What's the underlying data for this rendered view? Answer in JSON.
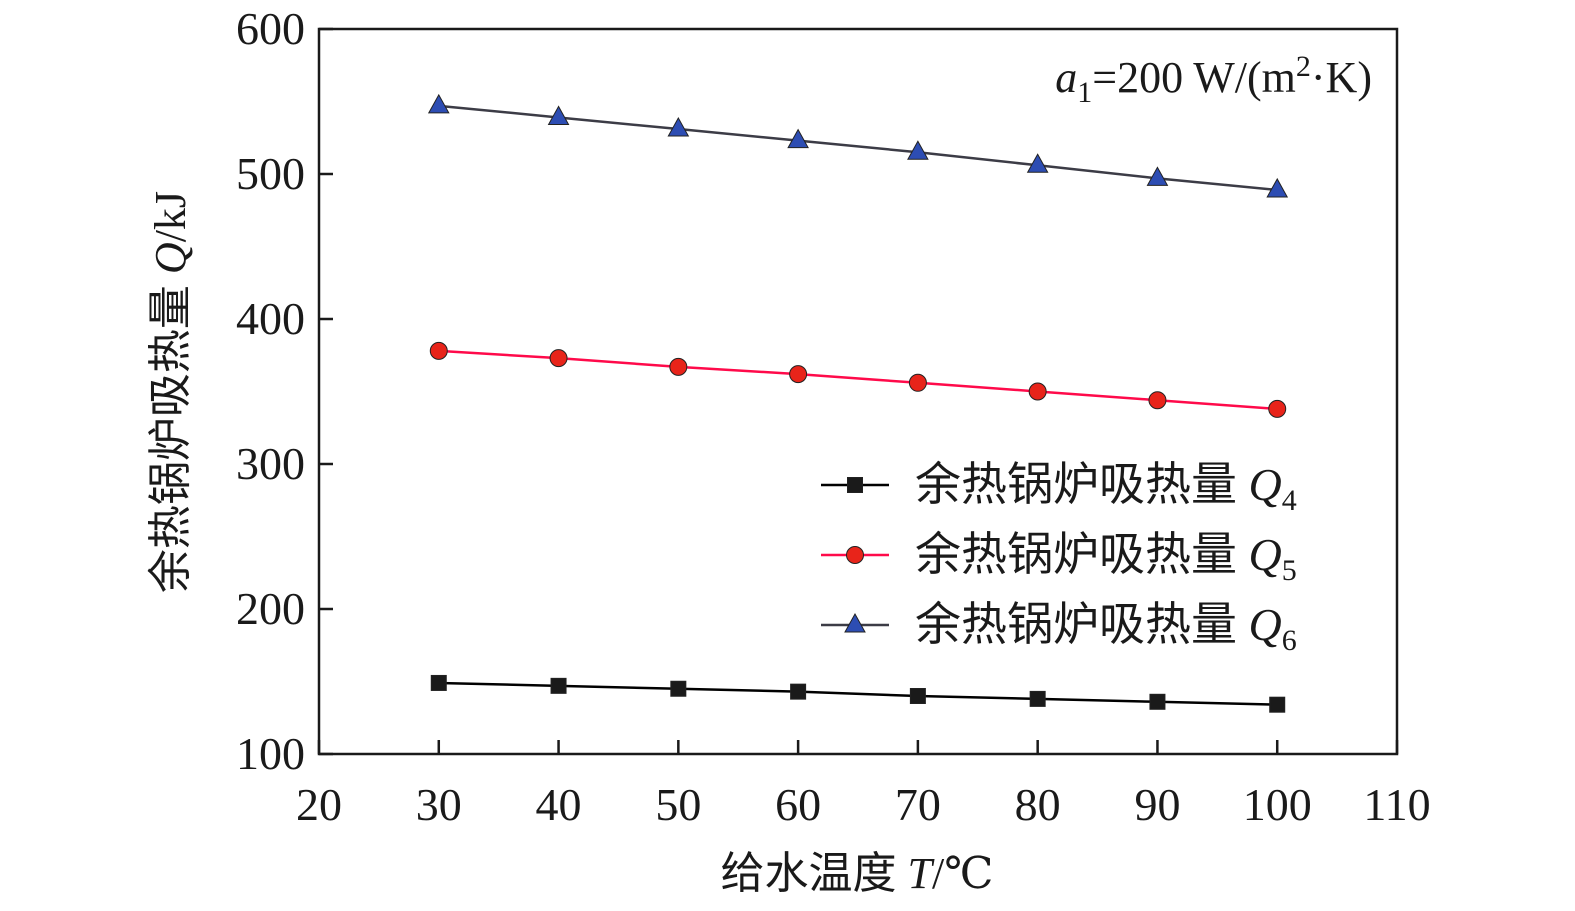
{
  "chart_data": {
    "type": "line",
    "xlabel": {
      "text": "给水温度 ",
      "var": "T",
      "unit": "/℃"
    },
    "ylabel": {
      "text": "余热锅炉吸热量 ",
      "var": "Q",
      "unit": "/kJ"
    },
    "xlim": [
      20,
      110
    ],
    "ylim": [
      100,
      600
    ],
    "xticks": [
      20,
      30,
      40,
      50,
      60,
      70,
      80,
      90,
      100,
      110
    ],
    "yticks": [
      100,
      200,
      300,
      400,
      500,
      600
    ],
    "grid": false,
    "legend_position": "right-middle",
    "annotation": {
      "var": "a",
      "sub": "1",
      "eq": "=200 W/(m",
      "sup": "2",
      "tail": "·K)"
    },
    "x": [
      30,
      40,
      50,
      60,
      70,
      80,
      90,
      100
    ],
    "series": [
      {
        "name": "余热锅炉吸热量 ",
        "var": "Q",
        "sub": "4",
        "marker": "square",
        "color": "#000000",
        "marker_color": "#1a1a1a",
        "values": [
          149,
          147,
          145,
          143,
          140,
          138,
          136,
          134
        ]
      },
      {
        "name": "余热锅炉吸热量 ",
        "var": "Q",
        "sub": "5",
        "marker": "circle",
        "color": "#ff0a4a",
        "marker_color": "#e8241a",
        "values": [
          378,
          373,
          367,
          362,
          356,
          350,
          344,
          338
        ]
      },
      {
        "name": "余热锅炉吸热量 ",
        "var": "Q",
        "sub": "6",
        "marker": "triangle",
        "color": "#3c3c46",
        "marker_color": "#2d4db3",
        "values": [
          547,
          539,
          531,
          523,
          515,
          506,
          497,
          489
        ]
      }
    ]
  }
}
